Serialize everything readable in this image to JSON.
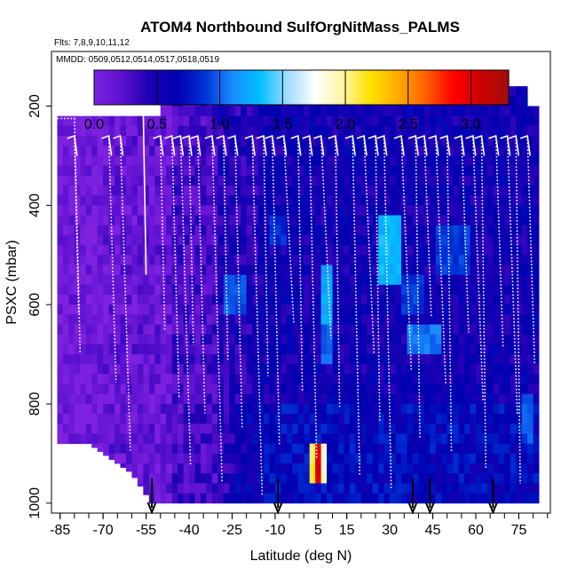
{
  "chart_data": {
    "type": "heatmap",
    "title": "ATOM4 Northbound SulfOrgNitMass_PALMS",
    "flights_note": "Flts: 7,8,9,10,11,12",
    "dates_note": "MMDD: 0509,0512,0514,0517,0518,0519",
    "xlabel": "Latitude (deg N)",
    "ylabel": "PSXC (mbar)",
    "xlim": [
      -88,
      86
    ],
    "ylim": [
      1020,
      90
    ],
    "x_ticks": [
      -85,
      -70,
      -55,
      -40,
      -25,
      -10,
      5,
      15,
      30,
      45,
      60,
      75
    ],
    "x_tick_labels": [
      "-85",
      "-70",
      "-55",
      "-40",
      "-25",
      "-10",
      "5",
      "15",
      "30",
      "45",
      "60",
      "75"
    ],
    "y_ticks": [
      200,
      400,
      600,
      800,
      1000
    ],
    "y_tick_labels": [
      "200",
      "400",
      "600",
      "800",
      "1000"
    ],
    "colorbar": {
      "min": 0.0,
      "max": 3.3,
      "ticks": [
        0.0,
        0.5,
        1.0,
        1.5,
        2.0,
        2.5,
        3.0
      ],
      "tick_labels": [
        "0.0",
        "0.5",
        "1.0",
        "1.5",
        "2.0",
        "2.5",
        "3.0"
      ],
      "colors": [
        "#7e22e0",
        "#5c11cf",
        "#1d00b4",
        "#0000b0",
        "#0031d6",
        "#1a8cff",
        "#00bfff",
        "#9fdcff",
        "#ffffff",
        "#fff5a0",
        "#ffe100",
        "#ffab00",
        "#ff6000",
        "#ff0000",
        "#cc0000",
        "#a01010"
      ]
    },
    "grid": false,
    "flight_profile_latitudes": [
      -80,
      -68,
      -64,
      -50,
      -46,
      -43,
      -40,
      -37,
      -32,
      -28,
      -24,
      -18,
      -14,
      -11,
      -7,
      -2,
      2,
      6,
      11,
      17,
      21,
      25,
      28,
      34,
      39,
      42,
      46,
      50,
      55,
      59,
      62,
      67,
      71,
      74,
      78
    ],
    "sounding_arrow_latitudes": [
      -53,
      -9,
      38,
      44,
      66
    ]
  }
}
